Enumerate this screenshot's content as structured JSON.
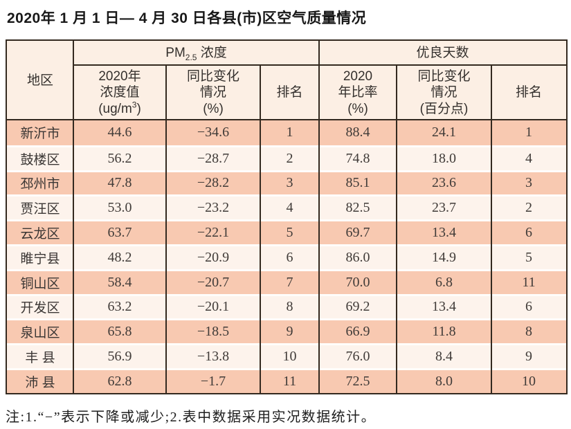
{
  "title": "2020年 1 月 1 日— 4 月 30 日各县(市)区空气质量情况",
  "footnote": "注:1.“−”表示下降或减少;2.表中数据采用实况数据统计。",
  "colors": {
    "border_dark": "#33291f",
    "header_bg": "#fcefe4",
    "row_odd_bg": "#f8c9b1",
    "row_even_bg": "#fdf3ec",
    "row_separator": "#fffdfb",
    "text": "#403b38"
  },
  "table": {
    "header": {
      "region": "地区",
      "pm_group": {
        "prefix": "PM",
        "sub": "2.5",
        "suffix": " 浓度"
      },
      "good_group": "优良天数",
      "pm_value": {
        "l1": "2020年",
        "l2": "浓度值",
        "u_pre": "(ug/m",
        "u_sup": "3",
        "u_suf": ")"
      },
      "pm_change": {
        "l1": "同比变化",
        "l2": "情况",
        "l3": "(%)"
      },
      "pm_rank": "排名",
      "good_ratio": {
        "l1": "2020",
        "l2": "年比率",
        "l3": "(%)"
      },
      "good_change": {
        "l1": "同比变化",
        "l2": "情况",
        "l3": "(百分点)"
      },
      "good_rank": "排名"
    },
    "rows": [
      {
        "region": "新沂市",
        "pm_value": "44.6",
        "pm_change": "−34.6",
        "pm_rank": "1",
        "good_ratio": "88.4",
        "good_change": "24.1",
        "good_rank": "1"
      },
      {
        "region": "鼓楼区",
        "pm_value": "56.2",
        "pm_change": "−28.7",
        "pm_rank": "2",
        "good_ratio": "74.8",
        "good_change": "18.0",
        "good_rank": "4"
      },
      {
        "region": "邳州市",
        "pm_value": "47.8",
        "pm_change": "−28.2",
        "pm_rank": "3",
        "good_ratio": "85.1",
        "good_change": "23.6",
        "good_rank": "3"
      },
      {
        "region": "贾汪区",
        "pm_value": "53.0",
        "pm_change": "−23.2",
        "pm_rank": "4",
        "good_ratio": "82.5",
        "good_change": "23.7",
        "good_rank": "2"
      },
      {
        "region": "云龙区",
        "pm_value": "63.7",
        "pm_change": "−22.1",
        "pm_rank": "5",
        "good_ratio": "69.7",
        "good_change": "13.4",
        "good_rank": "6"
      },
      {
        "region": "睢宁县",
        "pm_value": "48.2",
        "pm_change": "−20.9",
        "pm_rank": "6",
        "good_ratio": "86.0",
        "good_change": "14.9",
        "good_rank": "5"
      },
      {
        "region": "铜山区",
        "pm_value": "58.4",
        "pm_change": "−20.7",
        "pm_rank": "7",
        "good_ratio": "70.0",
        "good_change": "6.8",
        "good_rank": "11"
      },
      {
        "region": "开发区",
        "pm_value": "63.2",
        "pm_change": "−20.1",
        "pm_rank": "8",
        "good_ratio": "69.2",
        "good_change": "13.4",
        "good_rank": "6"
      },
      {
        "region": "泉山区",
        "pm_value": "65.8",
        "pm_change": "−18.5",
        "pm_rank": "9",
        "good_ratio": "66.9",
        "good_change": "11.8",
        "good_rank": "8"
      },
      {
        "region": "丰 县",
        "pm_value": "56.9",
        "pm_change": "−13.8",
        "pm_rank": "10",
        "good_ratio": "76.0",
        "good_change": "8.4",
        "good_rank": "9"
      },
      {
        "region": "沛 县",
        "pm_value": "62.8",
        "pm_change": "−1.7",
        "pm_rank": "11",
        "good_ratio": "72.5",
        "good_change": "8.0",
        "good_rank": "10"
      }
    ]
  }
}
